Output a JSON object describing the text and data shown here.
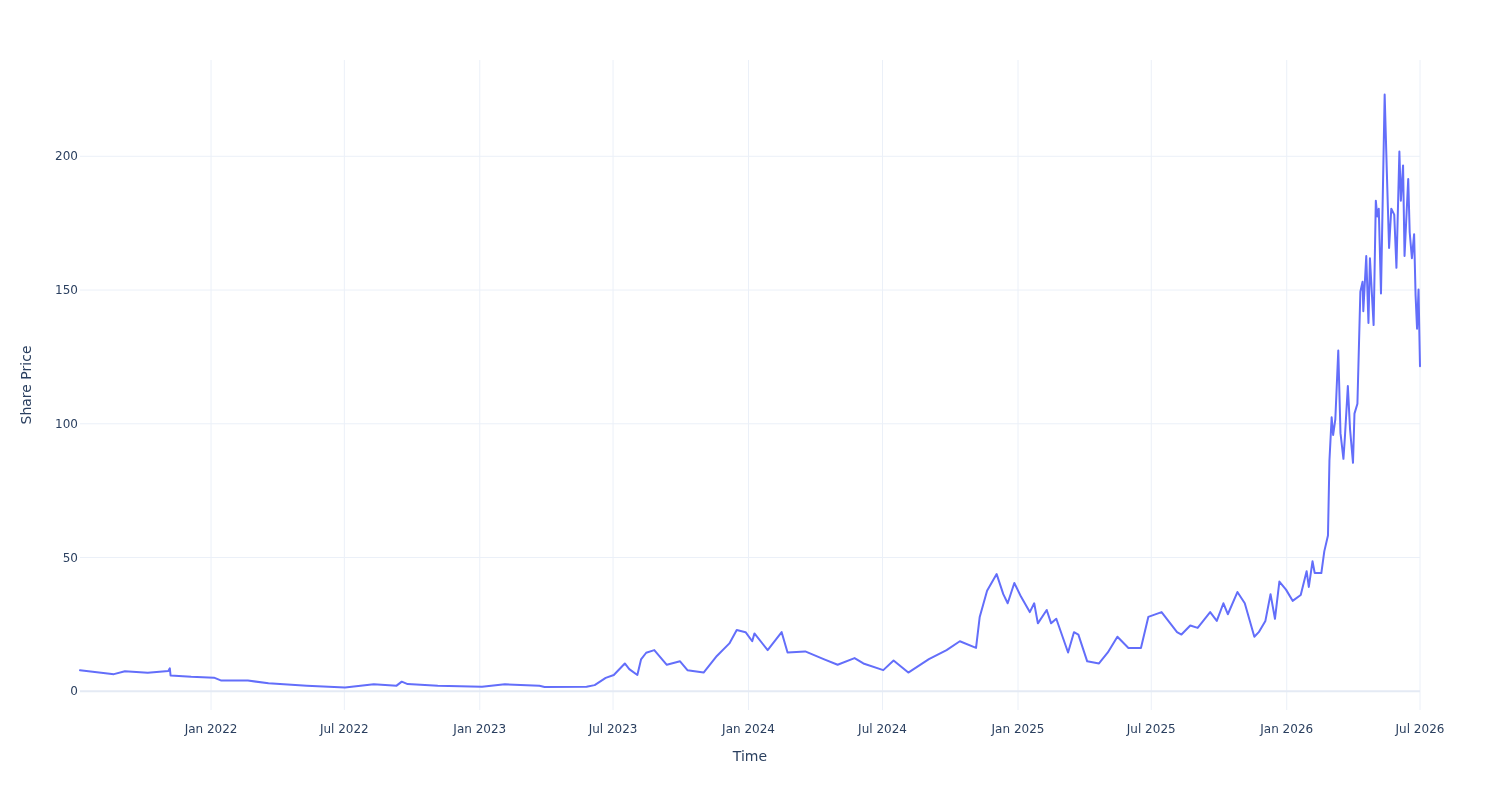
{
  "chart_data": {
    "type": "line",
    "xlabel": "Time",
    "ylabel": "Share Price",
    "grid": true,
    "xlim": [
      "2021-07-07",
      "2026-07-01"
    ],
    "ylim": [
      -7,
      236
    ],
    "xticks": [
      {
        "value": "2022-01-01",
        "label": "Jan 2022"
      },
      {
        "value": "2022-07-01",
        "label": "Jul 2022"
      },
      {
        "value": "2023-01-01",
        "label": "Jan 2023"
      },
      {
        "value": "2023-07-01",
        "label": "Jul 2023"
      },
      {
        "value": "2024-01-01",
        "label": "Jan 2024"
      },
      {
        "value": "2024-07-01",
        "label": "Jul 2024"
      },
      {
        "value": "2025-01-01",
        "label": "Jan 2025"
      },
      {
        "value": "2025-07-01",
        "label": "Jul 2025"
      },
      {
        "value": "2026-01-01",
        "label": "Jan 2026"
      },
      {
        "value": "2026-07-01",
        "label": "Jul 2026"
      }
    ],
    "yticks": [
      0,
      50,
      100,
      150,
      200
    ],
    "series": [
      {
        "color": "#636efa",
        "x": [
          "2021-07-07",
          "2021-08-22",
          "2021-09-06",
          "2021-10-07",
          "2021-11-04",
          "2021-11-06",
          "2021-11-07",
          "2021-12-05",
          "2022-01-05",
          "2022-01-15",
          "2022-02-20",
          "2022-03-20",
          "2022-05-11",
          "2022-07-02",
          "2022-08-10",
          "2022-09-10",
          "2022-09-17",
          "2022-09-25",
          "2022-11-05",
          "2023-01-04",
          "2023-02-04",
          "2023-03-23",
          "2023-03-30",
          "2023-05-26",
          "2023-06-06",
          "2023-06-21",
          "2023-07-02",
          "2023-07-17",
          "2023-07-23",
          "2023-08-03",
          "2023-08-08",
          "2023-08-15",
          "2023-08-26",
          "2023-09-12",
          "2023-09-30",
          "2023-10-10",
          "2023-11-01",
          "2023-11-19",
          "2023-12-06",
          "2023-12-16",
          "2023-12-28",
          "2024-01-06",
          "2024-01-09",
          "2024-01-27",
          "2024-02-15",
          "2024-02-23",
          "2024-03-18",
          "2024-04-12",
          "2024-05-01",
          "2024-05-24",
          "2024-06-05",
          "2024-07-02",
          "2024-07-16",
          "2024-08-05",
          "2024-09-02",
          "2024-09-26",
          "2024-10-14",
          "2024-11-05",
          "2024-11-10",
          "2024-11-20",
          "2024-12-03",
          "2024-12-12",
          "2024-12-18",
          "2024-12-27",
          "2025-01-05",
          "2025-01-17",
          "2025-01-23",
          "2025-01-28",
          "2025-02-09",
          "2025-02-15",
          "2025-02-22",
          "2025-03-10",
          "2025-03-18",
          "2025-03-24",
          "2025-04-05",
          "2025-04-21",
          "2025-05-03",
          "2025-05-16",
          "2025-05-31",
          "2025-06-17",
          "2025-06-27",
          "2025-07-15",
          "2025-08-05",
          "2025-08-11",
          "2025-08-23",
          "2025-09-02",
          "2025-09-19",
          "2025-09-28",
          "2025-10-07",
          "2025-10-13",
          "2025-10-26",
          "2025-11-05",
          "2025-11-18",
          "2025-11-24",
          "2025-12-03",
          "2025-12-10",
          "2025-12-16",
          "2025-12-22",
          "2025-12-31",
          "2026-01-09",
          "2026-01-20",
          "2026-01-28",
          "2026-01-31",
          "2026-02-05",
          "2026-02-08",
          "2026-02-17",
          "2026-02-21",
          "2026-02-26",
          "2026-02-28",
          "2026-03-03",
          "2026-03-05",
          "2026-03-08",
          "2026-03-12",
          "2026-03-15",
          "2026-03-19",
          "2026-03-21",
          "2026-03-25",
          "2026-03-28",
          "2026-04-01",
          "2026-04-03",
          "2026-04-07",
          "2026-04-11",
          "2026-04-14",
          "2026-04-15",
          "2026-04-19",
          "2026-04-22",
          "2026-04-24",
          "2026-04-29",
          "2026-05-02",
          "2026-05-04",
          "2026-05-06",
          "2026-05-09",
          "2026-05-14",
          "2026-05-17",
          "2026-05-20",
          "2026-05-23",
          "2026-05-27",
          "2026-05-30",
          "2026-06-03",
          "2026-06-05",
          "2026-06-08",
          "2026-06-10",
          "2026-06-15",
          "2026-06-17",
          "2026-06-20",
          "2026-06-23",
          "2026-06-25",
          "2026-06-27",
          "2026-06-29",
          "2026-07-01"
        ],
        "values": [
          7.9,
          6.4,
          7.5,
          6.9,
          7.6,
          8.6,
          5.9,
          5.4,
          5.1,
          4.0,
          4.0,
          3.0,
          2.1,
          1.4,
          2.6,
          2.1,
          3.6,
          2.7,
          2.1,
          1.7,
          2.6,
          2.1,
          1.6,
          1.7,
          2.3,
          5.0,
          6.1,
          10.4,
          8.3,
          6.1,
          11.9,
          14.4,
          15.4,
          9.9,
          11.2,
          7.9,
          7.0,
          13.2,
          17.9,
          22.9,
          22.1,
          18.7,
          21.6,
          15.4,
          22.1,
          14.5,
          14.9,
          12.0,
          9.9,
          12.4,
          10.4,
          7.9,
          11.5,
          7.0,
          12.0,
          15.4,
          18.7,
          16.2,
          27.8,
          37.6,
          43.8,
          36.3,
          32.9,
          40.5,
          35.4,
          29.6,
          32.9,
          25.4,
          30.4,
          25.4,
          27.1,
          14.5,
          22.1,
          21.2,
          11.2,
          10.4,
          14.5,
          20.4,
          16.2,
          16.2,
          27.8,
          29.6,
          22.1,
          21.2,
          24.6,
          23.7,
          29.6,
          26.3,
          32.9,
          28.8,
          37.1,
          32.9,
          20.4,
          22.1,
          26.3,
          36.3,
          27.1,
          41,
          38,
          33.8,
          36,
          44.9,
          39,
          48.6,
          44.2,
          44.2,
          52.3,
          58.2,
          86.2,
          102.4,
          95.8,
          101.7,
          127.4,
          96.5,
          86.9,
          95,
          114.1,
          97.9,
          85.4,
          103.8,
          107.5,
          149.4,
          153.1,
          142.1,
          162.7,
          137.7,
          161.9,
          136.9,
          183.4,
          177.5,
          180.4,
          148.7,
          223.1,
          193.7,
          165.7,
          180.4,
          178.2,
          158.3,
          201.8,
          183.4,
          196.6,
          162.7,
          191.5,
          171.6,
          161.9,
          170.9,
          148,
          135.5,
          150.2,
          121.5
        ]
      }
    ]
  }
}
